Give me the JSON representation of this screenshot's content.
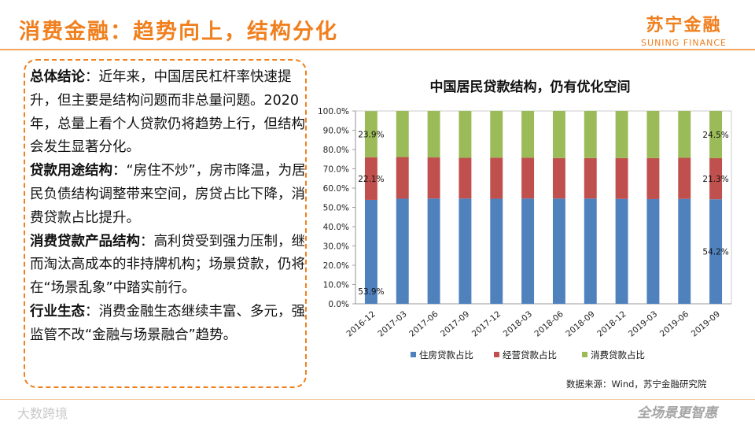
{
  "slide": {
    "title": "消费金融：趋势向上，结构分化",
    "brand_cn": "苏宁金融",
    "brand_en": "SUNING FINANCE",
    "footer_left": "大数跨境",
    "footer_right": "全场景更智惠",
    "source": "数据来源：Wind，苏宁金融研究院"
  },
  "summary": [
    {
      "key": "总体结论",
      "sep": "：",
      "text": "近年来，中国居民杠杆率快速提升，但主要是结构问题而非总量问题。2020年，总量上看个人贷款仍将趋势上行，但结构会发生显著分化。"
    },
    {
      "key": "贷款用途结构",
      "sep": "：",
      "text": "“房住不炒”，房市降温，为居民负债结构调整带来空间，房贷占比下降，消费贷款占比提升。"
    },
    {
      "key": "消费贷款产品结构",
      "sep": "：",
      "text": "高利贷受到强力压制，继而淘汰高成本的非持牌机构；场景贷款，仍将在“场景乱象”中踏实前行。"
    },
    {
      "key": "行业生态",
      "sep": "：",
      "text": "消费金融生态继续丰富、多元，强监管不改“金融与场景融合”趋势。"
    }
  ],
  "chart_data": {
    "type": "bar",
    "stacked": true,
    "percent": true,
    "title": "中国居民贷款结构，仍有优化空间",
    "categories": [
      "2016-12",
      "2017-03",
      "2017-06",
      "2017-09",
      "2017-12",
      "2018-03",
      "2018-06",
      "2018-09",
      "2018-12",
      "2019-03",
      "2019-06",
      "2019-09"
    ],
    "series": [
      {
        "name": "住房贷款占比",
        "color": "#4f81bd",
        "values": [
          53.9,
          54.5,
          54.6,
          54.6,
          54.5,
          54.6,
          54.6,
          54.6,
          54.4,
          54.3,
          54.4,
          54.2
        ]
      },
      {
        "name": "经营贷款占比",
        "color": "#c0504d",
        "values": [
          22.1,
          21.6,
          21.3,
          21.1,
          21.3,
          21.2,
          21.0,
          21.0,
          21.2,
          21.3,
          21.3,
          21.3
        ]
      },
      {
        "name": "消费贷款占比",
        "color": "#9bbb59",
        "values": [
          23.9,
          23.9,
          24.1,
          24.3,
          24.2,
          24.2,
          24.4,
          24.4,
          24.4,
          24.4,
          24.3,
          24.5
        ]
      }
    ],
    "data_labels": [
      {
        "text": "53.9%"
      },
      {
        "text": "22.1%"
      },
      {
        "text": "23.9%"
      },
      {
        "text": "54.2%"
      },
      {
        "text": "21.3%"
      },
      {
        "text": "24.5%"
      }
    ],
    "yticks": [
      "0.0%",
      "10.0%",
      "20.0%",
      "30.0%",
      "40.0%",
      "50.0%",
      "60.0%",
      "70.0%",
      "80.0%",
      "90.0%",
      "100.0%"
    ],
    "ylim": [
      0,
      100
    ],
    "legend_position": "bottom"
  }
}
